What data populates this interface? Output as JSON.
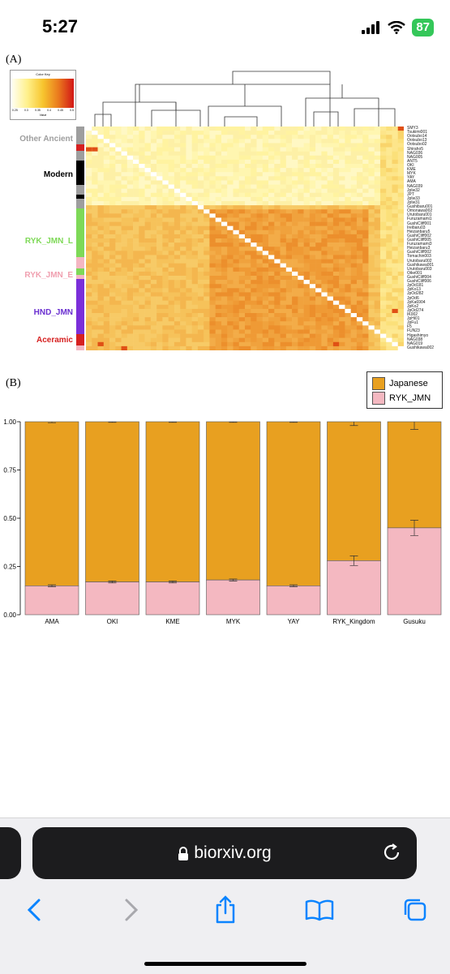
{
  "status_bar": {
    "time": "5:27",
    "battery": "87"
  },
  "figure": {
    "panel_a_label": "(A)",
    "panel_b_label": "(B)",
    "color_key": {
      "title": "Color Key",
      "axis_label": "Value",
      "ticks": [
        "0.25",
        "0.3",
        "0.35",
        "0.4",
        "0.45",
        "0.5"
      ]
    },
    "groups": [
      {
        "name": "Other Ancient",
        "color": "#9e9e9e"
      },
      {
        "name": "Modern",
        "color": "#000000"
      },
      {
        "name": "RYK_JMN_L",
        "color": "#7ed957"
      },
      {
        "name": "RYK_JMN_E",
        "color": "#f4b6c2"
      },
      {
        "name": "HND_JMN",
        "color": "#7b2fd9"
      },
      {
        "name": "Aceramic",
        "color": "#d62020"
      }
    ],
    "sample_labels": [
      "SMY3",
      "Tsukimi001",
      "Ootsubo14",
      "Ootsubo13",
      "Ootsubo02",
      "Shiraho5",
      "NAG036",
      "NAG005",
      "ANT5",
      "OKI",
      "KME",
      "MYK",
      "YAY",
      "AMA",
      "NAG039",
      "JpIw32",
      "JPT",
      "JpIw33",
      "JpIw31",
      "Gushibaru001",
      "Omonawa002",
      "Urutobaru001",
      "Furuzamami1",
      "GushiCliff001",
      "Ireibaru03",
      "Heizanbaru5",
      "GushiCliff002",
      "GushiCliff005",
      "Furuzamami3",
      "Heizanbaru3",
      "GushiCliff002",
      "Tomachin003",
      "Urutobaru002",
      "Gushikawa001",
      "Urutobaru003",
      "Oike001",
      "GushiCliff004",
      "GushiCliff006",
      "JpOd181",
      "JpKo13",
      "JpOd282",
      "JpOd6",
      "JpKa6904",
      "JpKo2",
      "JpOd274",
      "IK002",
      "JpHi01",
      "JpFu1",
      "F5",
      "FUN23",
      "Higashimyo",
      "NAG038",
      "NAG019",
      "Gushikawa002"
    ]
  },
  "chart_data": {
    "type": "bar",
    "stacked": true,
    "categories": [
      "AMA",
      "OKI",
      "KME",
      "MYK",
      "YAY",
      "RYK_Kingdom",
      "Gusuku"
    ],
    "series": [
      {
        "name": "RYK_JMN",
        "color": "#f4b8c1",
        "values": [
          0.15,
          0.17,
          0.17,
          0.18,
          0.15,
          0.28,
          0.45
        ],
        "error": [
          0.005,
          0.005,
          0.005,
          0.005,
          0.005,
          0.025,
          0.04
        ]
      },
      {
        "name": "Japanese",
        "color": "#e8a020",
        "values": [
          0.85,
          0.83,
          0.83,
          0.82,
          0.85,
          0.72,
          0.55
        ]
      }
    ],
    "top_error": [
      0.005,
      0.003,
      0.003,
      0.003,
      0.003,
      0.02,
      0.04
    ],
    "yticks": [
      "0.00",
      "0.25",
      "0.50",
      "0.75",
      "1.00"
    ],
    "ylim": [
      0,
      1
    ],
    "legend_position": "top-right"
  },
  "browser": {
    "url": "biorxiv.org"
  }
}
